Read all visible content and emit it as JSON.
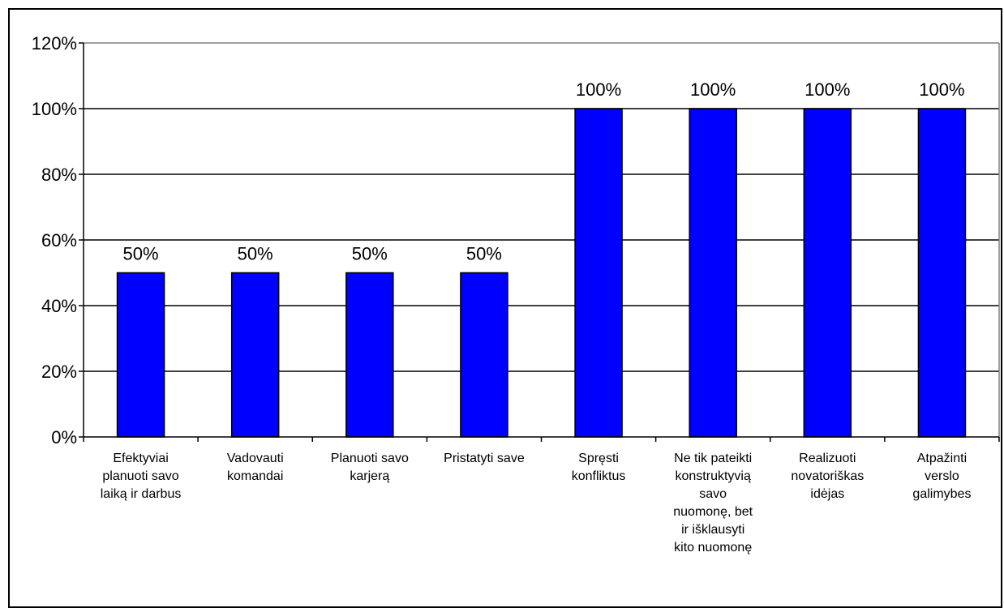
{
  "chart_data": {
    "type": "bar",
    "title": "",
    "xlabel": "",
    "ylabel": "",
    "ylim": [
      0,
      120
    ],
    "yticks": [
      "0%",
      "20%",
      "40%",
      "60%",
      "80%",
      "100%",
      "120%"
    ],
    "grid": true,
    "legend": "none",
    "categories": [
      "Efektyviai planuoti savo laiką ir darbus",
      "Vadovauti komandai",
      "Planuoti savo karjerą",
      "Pristatyti save",
      "Spręsti konfliktus",
      "Ne tik pateikti konstruktyvią savo nuomonę, bet ir išklausyti kito nuomonę",
      "Realizuoti novatoriškas idėjas",
      "Atpažinti verslo galimybes"
    ],
    "values": [
      50,
      50,
      50,
      50,
      100,
      100,
      100,
      100
    ],
    "value_labels": [
      "50%",
      "50%",
      "50%",
      "50%",
      "100%",
      "100%",
      "100%",
      "100%"
    ],
    "colors": {
      "bar": "#0000FF",
      "bar_edge": "#000000",
      "grid": "#000000",
      "plot_border": "#808080"
    }
  }
}
